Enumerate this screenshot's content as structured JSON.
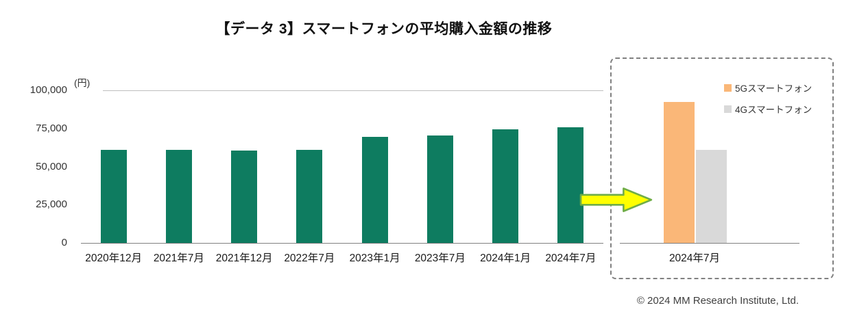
{
  "title": "【データ 3】スマートフォンの平均購入金額の推移",
  "footer": {
    "copyright": "© 2024 MM Research Institute, Ltd."
  },
  "arrow": {
    "fill": "#FFFF00",
    "outline": "#70AD47"
  },
  "chart_data": [
    {
      "type": "bar",
      "title": "スマートフォンの平均購入金額の推移",
      "categories": [
        "2020年12月",
        "2021年7月",
        "2021年12月",
        "2022年7月",
        "2023年1月",
        "2023年7月",
        "2024年1月",
        "2024年7月"
      ],
      "values": [
        61000,
        61000,
        60500,
        61000,
        69500,
        70500,
        74500,
        76000
      ],
      "bar_color": "#0E7C60",
      "ylabel": "(円)",
      "ylim": [
        0,
        100000
      ],
      "yticks": [
        0,
        25000,
        50000,
        75000,
        100000
      ],
      "grid": "top-line-only",
      "legend_position": "none"
    },
    {
      "type": "bar",
      "categories": [
        "2024年7月"
      ],
      "series": [
        {
          "name": "5Gスマートフォン",
          "values": [
            92500
          ],
          "color": "#FAB778"
        },
        {
          "name": "4Gスマートフォン",
          "values": [
            61000
          ],
          "color": "#D9D9D9"
        }
      ],
      "ylim": [
        0,
        100000
      ],
      "legend_position": "top-right",
      "frame": "dashed-box"
    }
  ]
}
